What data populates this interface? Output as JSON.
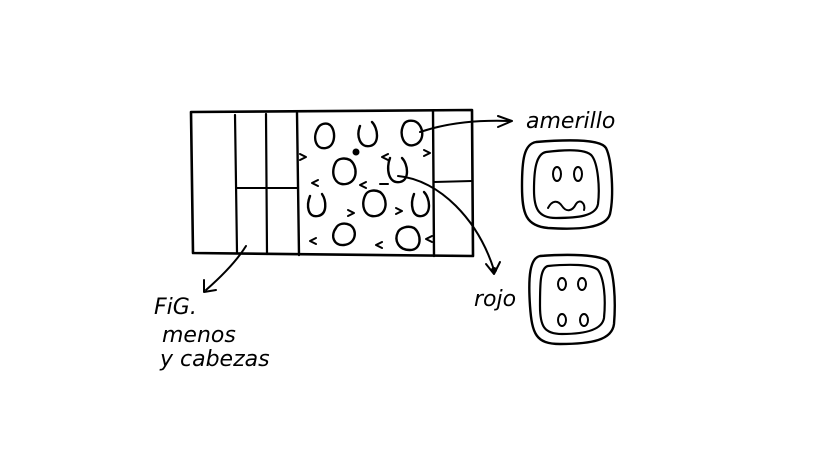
{
  "labels": {
    "amarillo": "amerillo",
    "rojo": "rojo",
    "caption_line1": "FiG.",
    "caption_line2": "menos",
    "caption_line3": "y cabezas"
  },
  "colors": {
    "ink": "#000000",
    "paper": "#ffffff"
  }
}
